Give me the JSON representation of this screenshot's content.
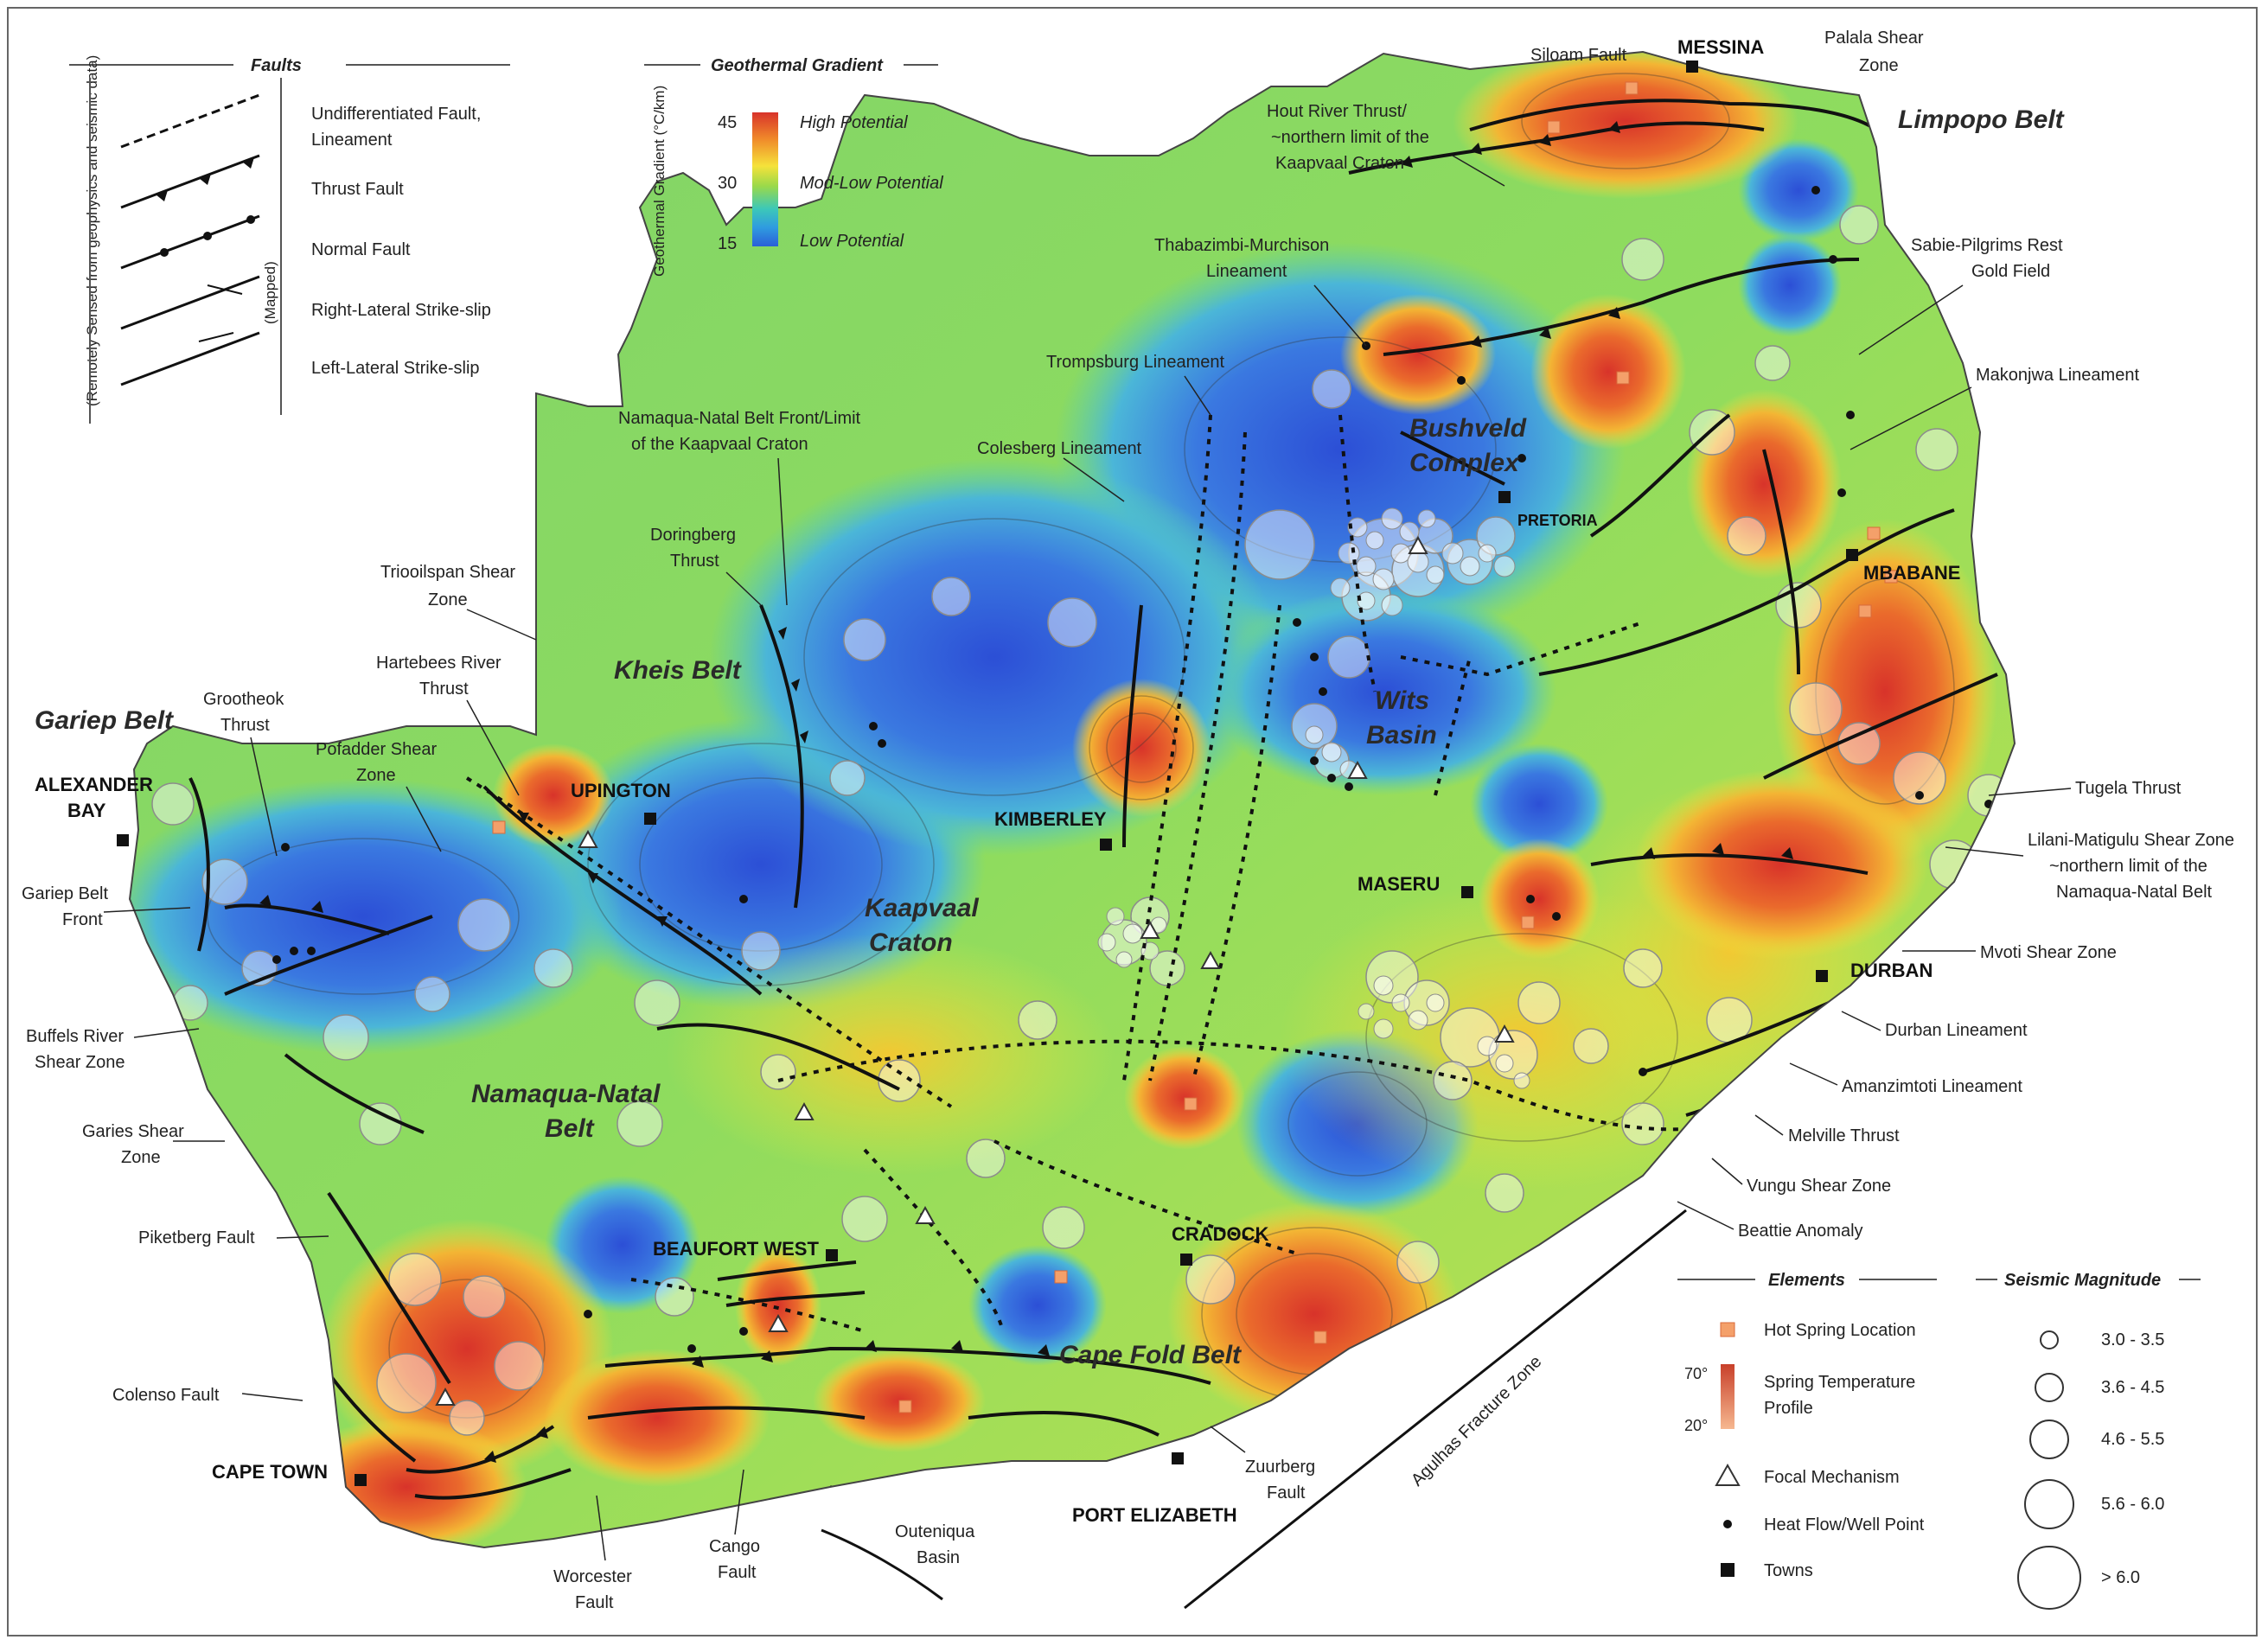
{
  "legend_faults": {
    "title": "Faults",
    "remote_note": "(Remotely Sensed from geophysics and seismic data)",
    "mapped_note": "(Mapped)",
    "items": [
      {
        "label_1": "Undifferentiated Fault,",
        "label_2": "Lineament"
      },
      {
        "label_1": "Thrust Fault",
        "label_2": ""
      },
      {
        "label_1": "Normal Fault",
        "label_2": ""
      },
      {
        "label_1": "Right-Lateral Strike-slip",
        "label_2": ""
      },
      {
        "label_1": "Left-Lateral Strike-slip",
        "label_2": ""
      }
    ]
  },
  "legend_gradient": {
    "title": "Geothermal Gradient",
    "axis_label": "Geothermal Gradient (°C/km)",
    "ticks": [
      "45",
      "30",
      "15"
    ],
    "labels": [
      "High Potential",
      "Mod-Low Potential",
      "Low Potential"
    ],
    "colors": [
      "#d8332a",
      "#f08a2a",
      "#f5e23a",
      "#9ad94a",
      "#3cc8b8",
      "#2f9be0",
      "#2a5fd8"
    ]
  },
  "legend_elements": {
    "title": "Elements",
    "hot_spring": "Hot Spring Location",
    "temp_high": "70°",
    "temp_low": "20°",
    "temp_label_1": "Spring Temperature",
    "temp_label_2": "Profile",
    "focal": "Focal Mechanism",
    "heat_flow": "Heat Flow/Well Point",
    "towns": "Towns"
  },
  "legend_seismic": {
    "title": "Seismic Magnitude",
    "items": [
      "3.0 - 3.5",
      "3.6 - 4.5",
      "4.6 - 5.5",
      "5.6 - 6.0",
      "> 6.0"
    ]
  },
  "towns": {
    "messina": "MESSINA",
    "pretoria": "PRETORIA",
    "mbabane": "MBABANE",
    "upington": "UPINGTON",
    "alexander_1": "ALEXANDER",
    "alexander_2": "BAY",
    "kimberley": "KIMBERLEY",
    "maseru": "MASERU",
    "durban": "DURBAN",
    "beaufort_west": "BEAUFORT WEST",
    "cradock": "CRADOCK",
    "cape_town": "CAPE TOWN",
    "port_elizabeth": "PORT ELIZABETH"
  },
  "regions": {
    "limpopo": "Limpopo Belt",
    "bushveld_1": "Bushveld",
    "bushveld_2": "Complex",
    "wits_1": "Wits",
    "wits_2": "Basin",
    "kheis": "Kheis Belt",
    "gariep": "Gariep Belt",
    "kaapvaal_1": "Kaapvaal",
    "kaapvaal_2": "Craton",
    "namaqua_1": "Namaqua-Natal",
    "namaqua_2": "Belt",
    "cape_fold": "Cape Fold Belt"
  },
  "features": {
    "siloam": "Siloam Fault",
    "palala_1": "Palala Shear",
    "palala_2": "Zone",
    "hout_1": "Hout River Thrust/",
    "hout_2": "~northern limit of the",
    "hout_3": "Kaapvaal Craton",
    "thabazimbi_1": "Thabazimbi-Murchison",
    "thabazimbi_2": "Lineament",
    "sabie_1": "Sabie-Pilgrims Rest",
    "sabie_2": "Gold Field",
    "trompsburg": "Trompsburg Lineament",
    "makonjwa": "Makonjwa Lineament",
    "namaqua_front_1": "Namaqua-Natal Belt Front/Limit",
    "namaqua_front_2": "of the Kaapvaal Craton",
    "colesberg": "Colesberg Lineament",
    "doringberg_1": "Doringberg",
    "doringberg_2": "Thrust",
    "trooilapspan_1": "Triooilspan Shear",
    "trooilapspan_2": "Zone",
    "hartebees_1": "Hartebees River",
    "hartebees_2": "Thrust",
    "grootheok_1": "Grootheok",
    "grootheok_2": "Thrust",
    "pofadder_1": "Pofadder Shear",
    "pofadder_2": "Zone",
    "gariep_front_1": "Gariep Belt",
    "gariep_front_2": "Front",
    "buffels_1": "Buffels River",
    "buffels_2": "Shear Zone",
    "garies_1": "Garies Shear",
    "garies_2": "Zone",
    "piketberg": "Piketberg Fault",
    "colenso": "Colenso Fault",
    "worcester_1": "Worcester",
    "worcester_2": "Fault",
    "cango_1": "Cango",
    "cango_2": "Fault",
    "outeniqua_1": "Outeniqua",
    "outeniqua_2": "Basin",
    "zuurberg_1": "Zuurberg",
    "zuurberg_2": "Fault",
    "agulhas": "Agulhas Fracture Zone",
    "tugela": "Tugela Thrust",
    "lilani_1": "Lilani-Matigulu Shear Zone",
    "lilani_2": "~northern limit of the",
    "lilani_3": "Namaqua-Natal Belt",
    "mvoti": "Mvoti Shear Zone",
    "durban_lin": "Durban Lineament",
    "amanzimtoti": "Amanzimtoti Lineament",
    "melville": "Melville Thrust",
    "vungu": "Vungu Shear Zone",
    "beattie": "Beattie Anomaly"
  }
}
